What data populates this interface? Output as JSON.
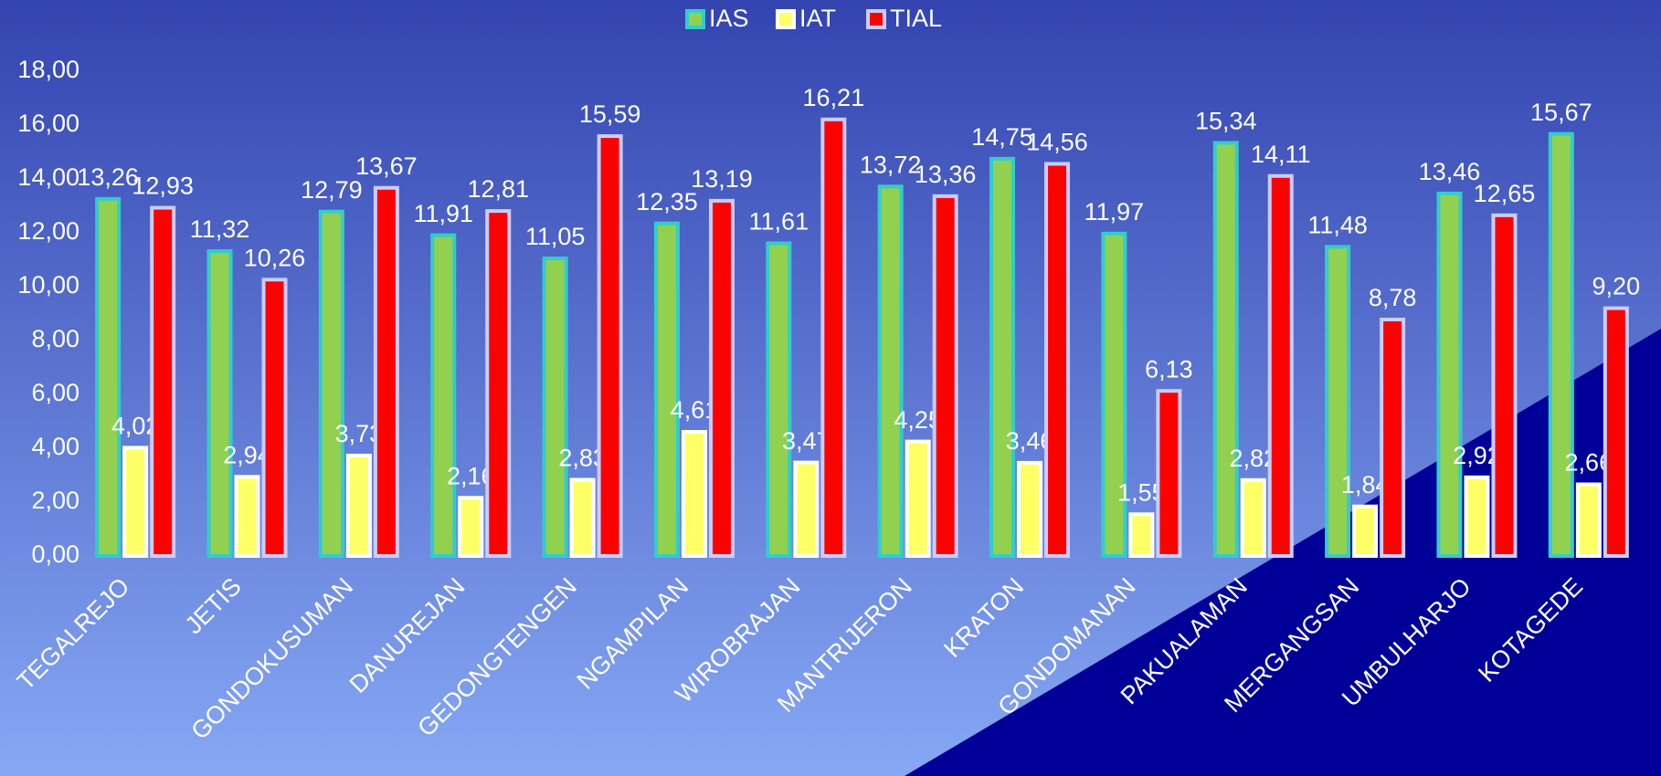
{
  "chart_data": {
    "type": "bar",
    "categories": [
      "TEGALREJO",
      "JETIS",
      "GONDOKUSUMAN",
      "DANUREJAN",
      "GEDONGTENGEN",
      "NGAMPILAN",
      "WIROBRAJAN",
      "MANTRIJERON",
      "KRATON",
      "GONDOMANAN",
      "PAKUALAMAN",
      "MERGANGSAN",
      "UMBULHARJO",
      "KOTAGEDE"
    ],
    "series": [
      {
        "name": "IAS",
        "color": "#92d050",
        "border": "#33cccc",
        "values": [
          13.26,
          11.32,
          12.79,
          11.91,
          11.05,
          12.35,
          11.61,
          13.72,
          14.75,
          11.97,
          15.34,
          11.48,
          13.46,
          15.67
        ],
        "value_labels": [
          "13,26",
          "11,32",
          "12,79",
          "11,91",
          "11,05",
          "12,35",
          "11,61",
          "13,72",
          "14,75",
          "11,97",
          "15,34",
          "11,48",
          "13,46",
          "15,67"
        ]
      },
      {
        "name": "IAT",
        "color": "#ffff66",
        "border": "#ffffff",
        "values": [
          4.02,
          2.94,
          3.73,
          2.16,
          2.83,
          4.61,
          3.47,
          4.25,
          3.46,
          1.55,
          2.82,
          1.84,
          2.92,
          2.66
        ],
        "value_labels": [
          "4,02",
          "2,94",
          "3,73",
          "2,16",
          "2,83",
          "4,61",
          "3,47",
          "4,25",
          "3,46",
          "1,55",
          "2,82",
          "1,84",
          "2,92",
          "2,66"
        ]
      },
      {
        "name": "TIAL",
        "color": "#ff0000",
        "border": "#ccccff",
        "values": [
          12.93,
          10.26,
          13.67,
          12.81,
          15.59,
          13.19,
          16.21,
          13.36,
          14.56,
          6.13,
          14.11,
          8.78,
          12.65,
          9.2
        ],
        "value_labels": [
          "12,93",
          "10,26",
          "13,67",
          "12,81",
          "15,59",
          "13,19",
          "16,21",
          "13,36",
          "14,56",
          "6,13",
          "14,11",
          "8,78",
          "12,65",
          "9,20"
        ]
      }
    ],
    "ylim": [
      0,
      18
    ],
    "yticks": [
      {
        "value": 0,
        "label": "0,00"
      },
      {
        "value": 2,
        "label": "2,00"
      },
      {
        "value": 4,
        "label": "4,00"
      },
      {
        "value": 6,
        "label": "6,00"
      },
      {
        "value": 8,
        "label": "8,00"
      },
      {
        "value": 10,
        "label": "10,00"
      },
      {
        "value": 12,
        "label": "12,00"
      },
      {
        "value": 14,
        "label": "14,00"
      },
      {
        "value": 16,
        "label": "16,00"
      },
      {
        "value": 18,
        "label": "18,00"
      }
    ],
    "legend": "top"
  }
}
